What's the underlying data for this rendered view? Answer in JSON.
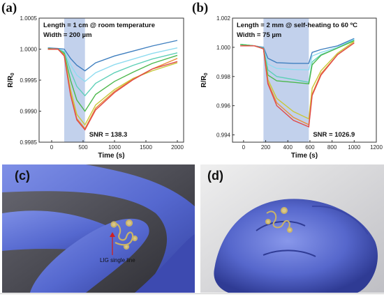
{
  "panels": {
    "a": "(a)",
    "b": "(b)",
    "c": "(c)",
    "d": "(d)"
  },
  "chart_data": [
    {
      "type": "line",
      "panel": "(a)",
      "xlabel": "Time (s)",
      "ylabel": "R/R0",
      "xlim": [
        -200,
        2100
      ],
      "ylim": [
        0.9985,
        1.0005
      ],
      "xticks": [
        0,
        500,
        1000,
        1500,
        2000
      ],
      "yticks": [
        0.9985,
        0.999,
        0.9995,
        1.0,
        1.0005
      ],
      "ytick_labels": [
        "0.9985",
        "0.9990",
        "0.9995",
        "1.0000",
        "1.0005"
      ],
      "shade": [
        200,
        530
      ],
      "annotations": [
        "Length = 1 cm   @ room temperature",
        "Width = 200 µm",
        "SNR = 138.3"
      ],
      "series": [
        {
          "color": "#3f7fbf",
          "x": [
            -60,
            100,
            200,
            300,
            400,
            530,
            700,
            1000,
            1300,
            1600,
            2000
          ],
          "y": [
            1.00002,
            1.00001,
            1.0,
            0.99985,
            0.99974,
            0.99965,
            0.99978,
            0.99989,
            0.99997,
            1.00005,
            1.00014
          ]
        },
        {
          "color": "#8fdcf0",
          "x": [
            -60,
            100,
            200,
            300,
            400,
            530,
            700,
            1000,
            1300,
            1600,
            2000
          ],
          "y": [
            1.00001,
            1.0,
            0.99997,
            0.99975,
            0.99958,
            0.99948,
            0.99962,
            0.99975,
            0.99984,
            0.99993,
            1.00002
          ]
        },
        {
          "color": "#5fd0b8",
          "x": [
            -60,
            100,
            200,
            300,
            400,
            530,
            700,
            1000,
            1300,
            1600,
            2000
          ],
          "y": [
            1.00001,
            1.0,
            0.99995,
            0.99965,
            0.9994,
            0.99925,
            0.99945,
            0.99962,
            0.99974,
            0.99984,
            0.99994
          ]
        },
        {
          "color": "#4db84d",
          "x": [
            -60,
            100,
            200,
            300,
            400,
            530,
            700,
            1000,
            1300,
            1600,
            2000
          ],
          "y": [
            1.00001,
            1.0,
            0.99993,
            0.9995,
            0.99918,
            0.999,
            0.99927,
            0.99948,
            0.99963,
            0.99977,
            0.9999
          ]
        },
        {
          "color": "#c8c83a",
          "x": [
            -60,
            100,
            200,
            300,
            400,
            530,
            700,
            1000,
            1300,
            1600,
            2000
          ],
          "y": [
            1.0,
            1.0,
            0.99991,
            0.99935,
            0.99895,
            0.99878,
            0.9991,
            0.99935,
            0.99953,
            0.99965,
            0.99978
          ]
        },
        {
          "color": "#e8903a",
          "x": [
            -60,
            100,
            200,
            300,
            400,
            530,
            700,
            1000,
            1300,
            1600,
            2000
          ],
          "y": [
            1.0,
            1.0,
            0.9999,
            0.99928,
            0.99888,
            0.99872,
            0.99905,
            0.99932,
            0.99952,
            0.99968,
            0.99985
          ]
        },
        {
          "color": "#e04848",
          "x": [
            -60,
            100,
            200,
            300,
            400,
            530,
            700,
            1000,
            1300,
            1600,
            2000
          ],
          "y": [
            1.0,
            1.0,
            0.99989,
            0.99926,
            0.99886,
            0.9987,
            0.99902,
            0.9993,
            0.99951,
            0.99968,
            0.9998
          ]
        }
      ]
    },
    {
      "type": "line",
      "panel": "(b)",
      "xlabel": "Time (s)",
      "ylabel": "R/R0",
      "xlim": [
        -100,
        1200
      ],
      "ylim": [
        0.9935,
        1.002
      ],
      "xticks": [
        0,
        200,
        400,
        600,
        800,
        1000,
        1200
      ],
      "yticks": [
        0.994,
        0.996,
        0.998,
        1.0,
        1.002
      ],
      "ytick_labels": [
        "0.994",
        "0.996",
        "0.998",
        "1.000",
        "1.002"
      ],
      "shade": [
        180,
        590
      ],
      "annotations": [
        "Length = 2 mm   @ self-heating to 60 ºC",
        "Width = 75 µm",
        "SNR = 1026.9"
      ],
      "series": [
        {
          "color": "#3f7fbf",
          "x": [
            -30,
            100,
            180,
            220,
            300,
            450,
            590,
            620,
            700,
            850,
            1000
          ],
          "y": [
            1.0002,
            1.0001,
            1.0,
            0.99925,
            0.99895,
            0.9989,
            0.9989,
            0.99965,
            0.99985,
            1.0001,
            1.0006
          ]
        },
        {
          "color": "#8fdcf0",
          "x": [
            -30,
            100,
            180,
            220,
            300,
            450,
            590,
            620,
            700,
            850,
            1000
          ],
          "y": [
            1.0002,
            1.0001,
            0.99995,
            0.99885,
            0.99855,
            0.99848,
            0.99845,
            0.9994,
            0.99965,
            1.0,
            1.00055
          ]
        },
        {
          "color": "#5fd0b8",
          "x": [
            -30,
            100,
            180,
            220,
            300,
            450,
            590,
            620,
            700,
            850,
            1000
          ],
          "y": [
            1.0002,
            1.0001,
            0.99995,
            0.99845,
            0.998,
            0.9978,
            0.9976,
            0.999,
            0.9995,
            0.99995,
            1.0005
          ]
        },
        {
          "color": "#4db84d",
          "x": [
            -30,
            100,
            180,
            220,
            300,
            450,
            590,
            620,
            700,
            850,
            1000
          ],
          "y": [
            1.0002,
            1.0001,
            0.9999,
            0.9981,
            0.9977,
            0.9976,
            0.9975,
            0.9988,
            0.99945,
            0.99995,
            1.00045
          ]
        },
        {
          "color": "#c8c83a",
          "x": [
            -30,
            100,
            180,
            220,
            300,
            450,
            590,
            620,
            700,
            850,
            1000
          ],
          "y": [
            1.0001,
            1.0001,
            0.9999,
            0.9978,
            0.9965,
            0.9956,
            0.9951,
            0.9972,
            0.9984,
            0.9996,
            1.0004
          ]
        },
        {
          "color": "#e8903a",
          "x": [
            -30,
            100,
            180,
            220,
            300,
            450,
            590,
            620,
            700,
            850,
            1000
          ],
          "y": [
            1.0001,
            1.0001,
            0.9999,
            0.9976,
            0.9962,
            0.9952,
            0.9947,
            0.9968,
            0.9982,
            0.9995,
            1.0003
          ]
        },
        {
          "color": "#e04848",
          "x": [
            -30,
            100,
            180,
            220,
            300,
            450,
            590,
            620,
            700,
            850,
            1000
          ],
          "y": [
            1.0001,
            1.0001,
            0.9999,
            0.9975,
            0.996,
            0.995,
            0.99455,
            0.9967,
            0.9981,
            0.9995,
            1.0003
          ]
        }
      ]
    }
  ],
  "photos": {
    "c_label": "LIG single line",
    "glove_color": "#5b6fd0",
    "glove_shadow": "#3a45a0",
    "sensor_color": "#c9b36a"
  }
}
